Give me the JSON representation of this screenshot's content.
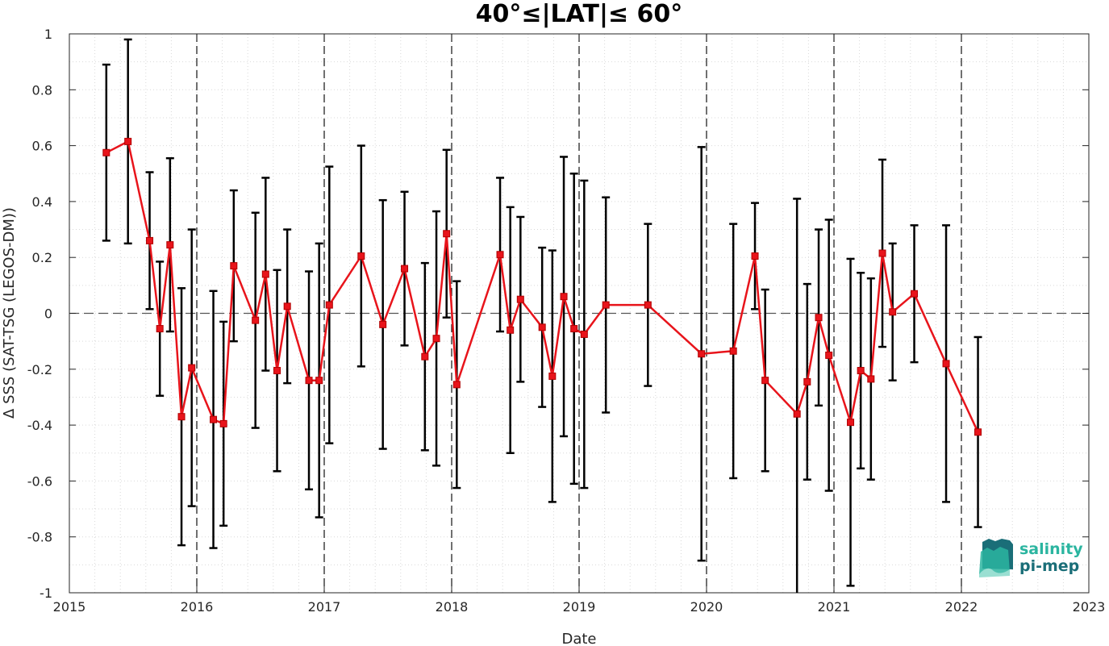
{
  "chart_data": {
    "type": "line",
    "title": "40°≤|LAT|≤ 60°",
    "xlabel": "Date",
    "ylabel": "Δ SSS (SAT-TSG (LEGOS-DM))",
    "xlim": [
      2015,
      2023
    ],
    "ylim": [
      -1,
      1
    ],
    "x_ticks": [
      "2015",
      "2016",
      "2017",
      "2018",
      "2019",
      "2020",
      "2021",
      "2022",
      "2023"
    ],
    "y_ticks": [
      "1",
      "0.8",
      "0.6",
      "0.4",
      "0.2",
      "0",
      "-0.2",
      "-0.4",
      "-0.6",
      "-0.8",
      "-1"
    ],
    "grid": "minor dotted",
    "year_lines": "dashed vertical at each year",
    "zero_line": "dashed horizontal at 0",
    "series": [
      {
        "color": "#e8141b",
        "marker": "square",
        "error_bar_color": "#000000",
        "x": [
          2015.29,
          2015.46,
          2015.63,
          2015.71,
          2015.79,
          2015.88,
          2015.96,
          2016.13,
          2016.21,
          2016.29,
          2016.46,
          2016.54,
          2016.63,
          2016.71,
          2016.88,
          2016.96,
          2017.04,
          2017.29,
          2017.46,
          2017.63,
          2017.79,
          2017.88,
          2017.96,
          2018.04,
          2018.38,
          2018.46,
          2018.54,
          2018.71,
          2018.79,
          2018.88,
          2018.96,
          2019.04,
          2019.21,
          2019.54,
          2019.96,
          2020.21,
          2020.38,
          2020.46,
          2020.71,
          2020.79,
          2020.88,
          2020.96,
          2021.13,
          2021.21,
          2021.29,
          2021.38,
          2021.46,
          2021.63,
          2021.88,
          2022.13
        ],
        "y": [
          0.575,
          0.615,
          0.26,
          -0.055,
          0.245,
          -0.37,
          -0.195,
          -0.38,
          -0.395,
          0.17,
          -0.025,
          0.14,
          -0.205,
          0.025,
          -0.24,
          -0.24,
          0.03,
          0.205,
          -0.04,
          0.16,
          -0.155,
          -0.09,
          0.285,
          -0.255,
          0.21,
          -0.06,
          0.05,
          -0.05,
          -0.225,
          0.06,
          -0.055,
          -0.075,
          0.03,
          0.03,
          -0.145,
          -0.135,
          0.205,
          -0.24,
          -0.36,
          -0.245,
          -0.015,
          -0.15,
          -0.39,
          -0.205,
          -0.235,
          0.215,
          0.005,
          0.07,
          -0.18,
          -0.425
        ],
        "err": [
          0.315,
          0.365,
          0.245,
          0.24,
          0.31,
          0.46,
          0.495,
          0.46,
          0.365,
          0.27,
          0.385,
          0.345,
          0.36,
          0.275,
          0.39,
          0.49,
          0.495,
          0.395,
          0.445,
          0.275,
          0.335,
          0.455,
          0.3,
          0.37,
          0.275,
          0.44,
          0.295,
          0.285,
          0.45,
          0.5,
          0.555,
          0.55,
          0.385,
          0.29,
          0.74,
          0.455,
          0.19,
          0.325,
          0.77,
          0.35,
          0.315,
          0.485,
          0.585,
          0.35,
          0.36,
          0.335,
          0.245,
          0.245,
          0.495,
          0.34
        ]
      }
    ]
  },
  "logo": {
    "line1": "salinity",
    "line2": "pi-mep",
    "color_primary": "#2bb5a0",
    "color_secondary": "#1a6e78"
  },
  "colors": {
    "series": "#e8141b",
    "error_bars": "#000000",
    "grid": "#d9d9d9",
    "axes": "#262626"
  }
}
